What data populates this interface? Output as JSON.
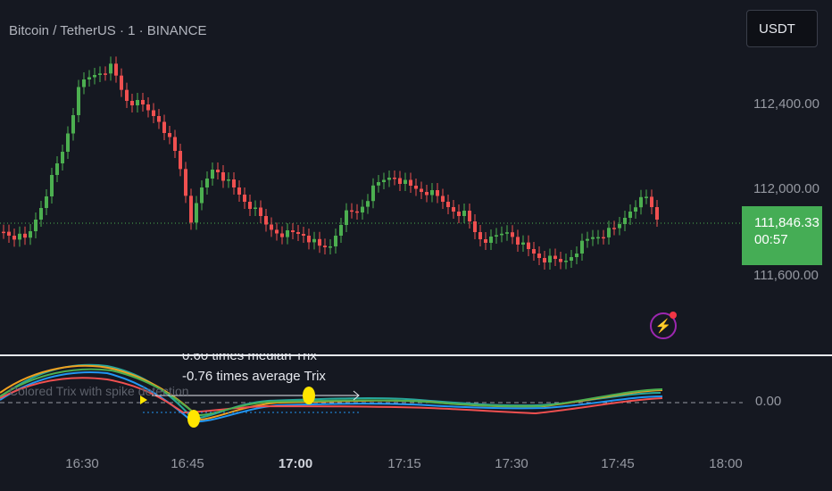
{
  "header": {
    "title": "Bitcoin / TetherUS · 1 · BINANCE"
  },
  "currency_button": {
    "label": "USDT"
  },
  "price_axis": {
    "ticks": [
      "112,400.00",
      "112,000.00",
      "111,600.00"
    ],
    "last_price": "111,846.33",
    "countdown": "00:57"
  },
  "indicator_axis": {
    "zero_label": "0.00"
  },
  "time_axis": {
    "ticks": [
      "16:30",
      "16:45",
      "17:00",
      "17:15",
      "17:30",
      "17:45",
      "18:00"
    ]
  },
  "indicator": {
    "label": "Colored Trix with spike detection",
    "annotation_median": "0.60 times median Trix",
    "annotation_average": "-0.76 times average Trix"
  },
  "colors": {
    "up": "#4caf50",
    "down": "#f05050",
    "price_tag": "#45ad55",
    "alert_purple": "#9c27b0",
    "marker": "#ffe600"
  },
  "icons": {
    "alert": "lightning-bolt-icon"
  }
}
